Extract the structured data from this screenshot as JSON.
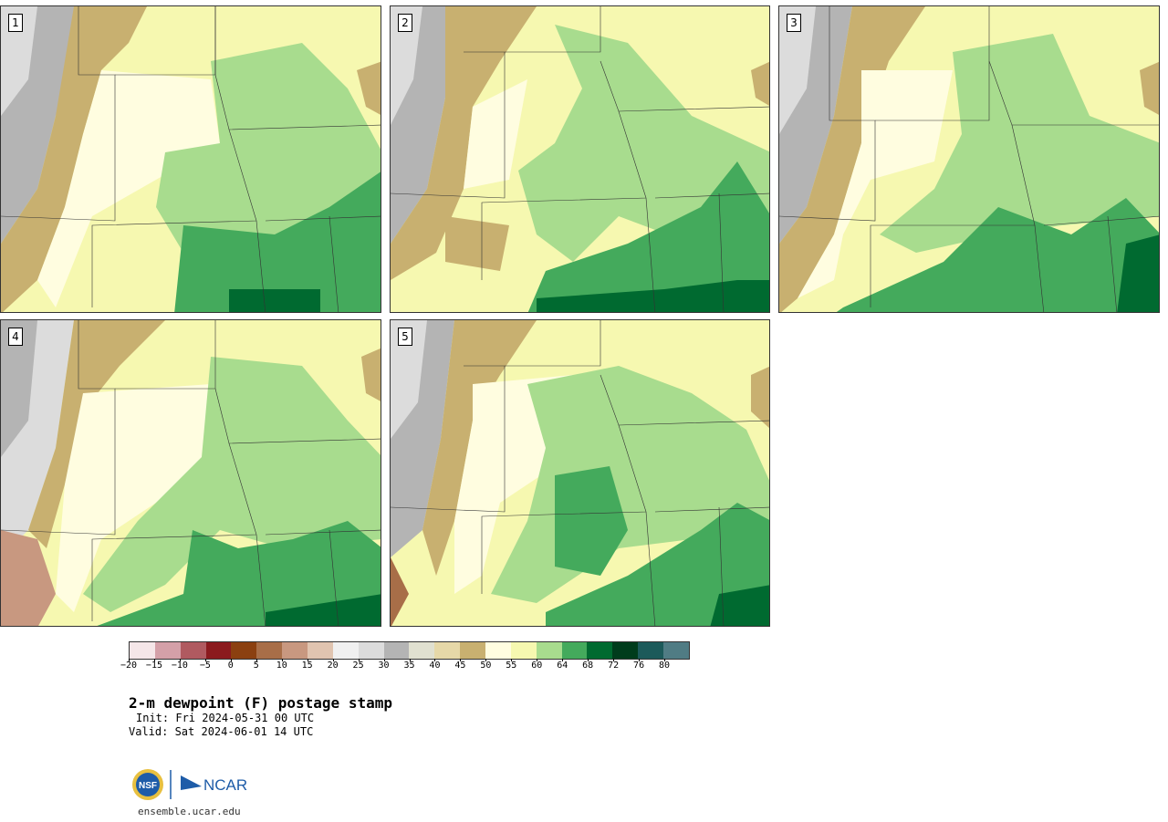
{
  "panels": [
    {
      "number": "1"
    },
    {
      "number": "2"
    },
    {
      "number": "3"
    },
    {
      "number": "4"
    },
    {
      "number": "5"
    }
  ],
  "colorbar": {
    "colors": [
      "#f5e6e8",
      "#d4a0a8",
      "#b05a60",
      "#8b1a1e",
      "#8b4010",
      "#a86e48",
      "#c89880",
      "#e0c4b0",
      "#f0f0f0",
      "#dcdcdc",
      "#b4b4b4",
      "#e0e0d0",
      "#e6d8a8",
      "#c8b070",
      "#fffde0",
      "#f6f8b0",
      "#a8dc8e",
      "#44aa5c",
      "#006a30",
      "#003c1c",
      "#1c5a5a",
      "#507c84"
    ],
    "ticks": [
      "−20",
      "−15",
      "−10",
      "−5",
      "0",
      "5",
      "10",
      "15",
      "20",
      "25",
      "30",
      "35",
      "40",
      "45",
      "50",
      "55",
      "60",
      "64",
      "68",
      "72",
      "76",
      "80"
    ]
  },
  "title": "2-m dewpoint (F) postage stamp",
  "init": "Init: Fri 2024-05-31 00 UTC",
  "valid": "Valid: Sat 2024-06-01 14 UTC",
  "logos": {
    "nsf": "NSF",
    "ncar": "NCAR"
  },
  "url": "ensemble.ucar.edu"
}
